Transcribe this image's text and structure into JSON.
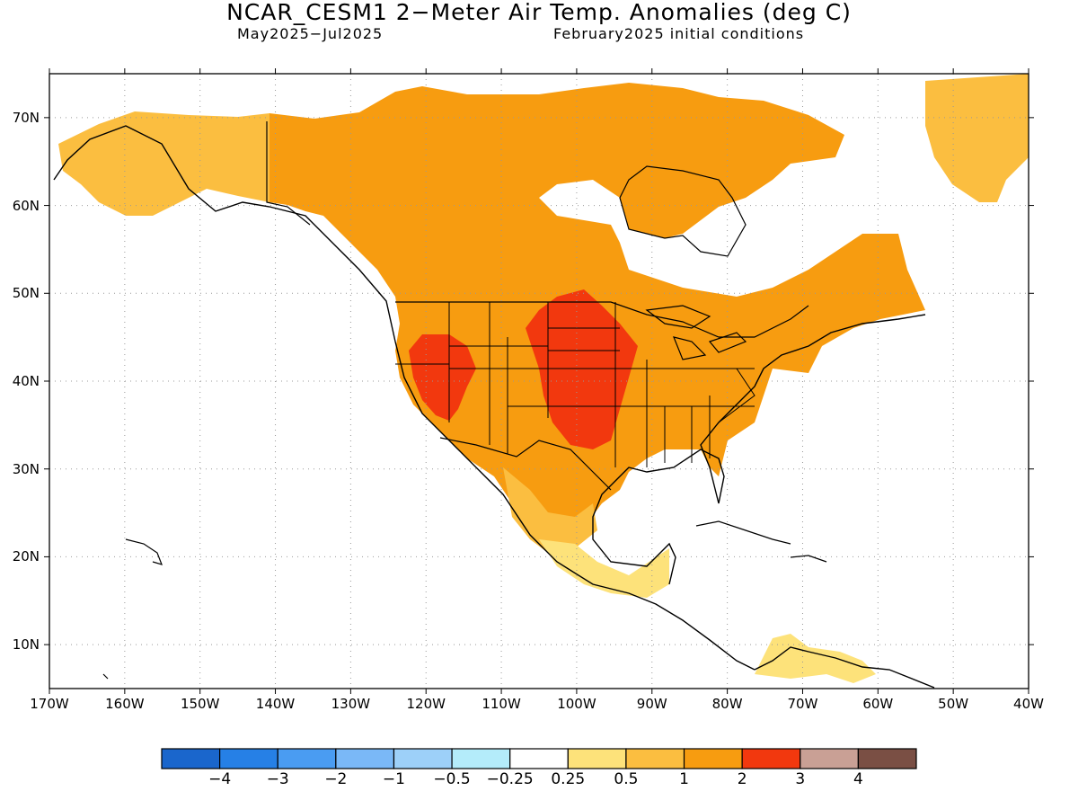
{
  "header": {
    "title": "NCAR_CESM1 2−Meter Air Temp. Anomalies (deg C)",
    "period": "May2025−Jul2025",
    "init": "February2025 initial conditions"
  },
  "axes": {
    "lat_labels": [
      "70N",
      "60N",
      "50N",
      "40N",
      "30N",
      "20N",
      "10N"
    ],
    "lon_labels": [
      "170W",
      "160W",
      "150W",
      "140W",
      "130W",
      "120W",
      "110W",
      "100W",
      "90W",
      "80W",
      "70W",
      "60W",
      "50W",
      "40W"
    ]
  },
  "colorbar": {
    "colors": [
      "#1a66cc",
      "#2680e6",
      "#4a9cf2",
      "#7ab8f7",
      "#9dd0f9",
      "#b4ecfa",
      "#ffffff",
      "#fde27a",
      "#fbbe40",
      "#f79c10",
      "#f2380e",
      "#c9a095",
      "#7a4f44"
    ],
    "labels": [
      "−4",
      "−3",
      "−2",
      "−1",
      "−0.5",
      "−0.25",
      "0.25",
      "0.5",
      "1",
      "2",
      "3",
      "4"
    ]
  },
  "legend_scale": {
    "bins": [
      "< -4",
      "-4 to -3",
      "-3 to -2",
      "-2 to -1",
      "-1 to -0.5",
      "-0.5 to -0.25",
      "-0.25 to 0.25",
      "0.25 to 0.5",
      "0.5 to 1",
      "1 to 2",
      "2 to 3",
      "3 to 4",
      "> 4"
    ]
  },
  "map": {
    "region": "North America",
    "projection": "lat-lon",
    "lon_range": [
      -170,
      -40
    ],
    "lat_range": [
      5,
      75
    ],
    "gridlines": "dotted",
    "features": [
      {
        "name": "western-us-hot-core",
        "category": "2 to 3"
      },
      {
        "name": "central-plains-hot-core",
        "category": "2 to 3"
      },
      {
        "name": "canada-warm-region",
        "category": "1 to 2"
      },
      {
        "name": "alaska-mild-region",
        "category": "0.5 to 1"
      },
      {
        "name": "mexico-mild-region",
        "category": "0.5 to 1"
      },
      {
        "name": "central-america-slight",
        "category": "0.25 to 0.5"
      },
      {
        "name": "greenland-mild",
        "category": "0.5 to 1"
      }
    ]
  }
}
